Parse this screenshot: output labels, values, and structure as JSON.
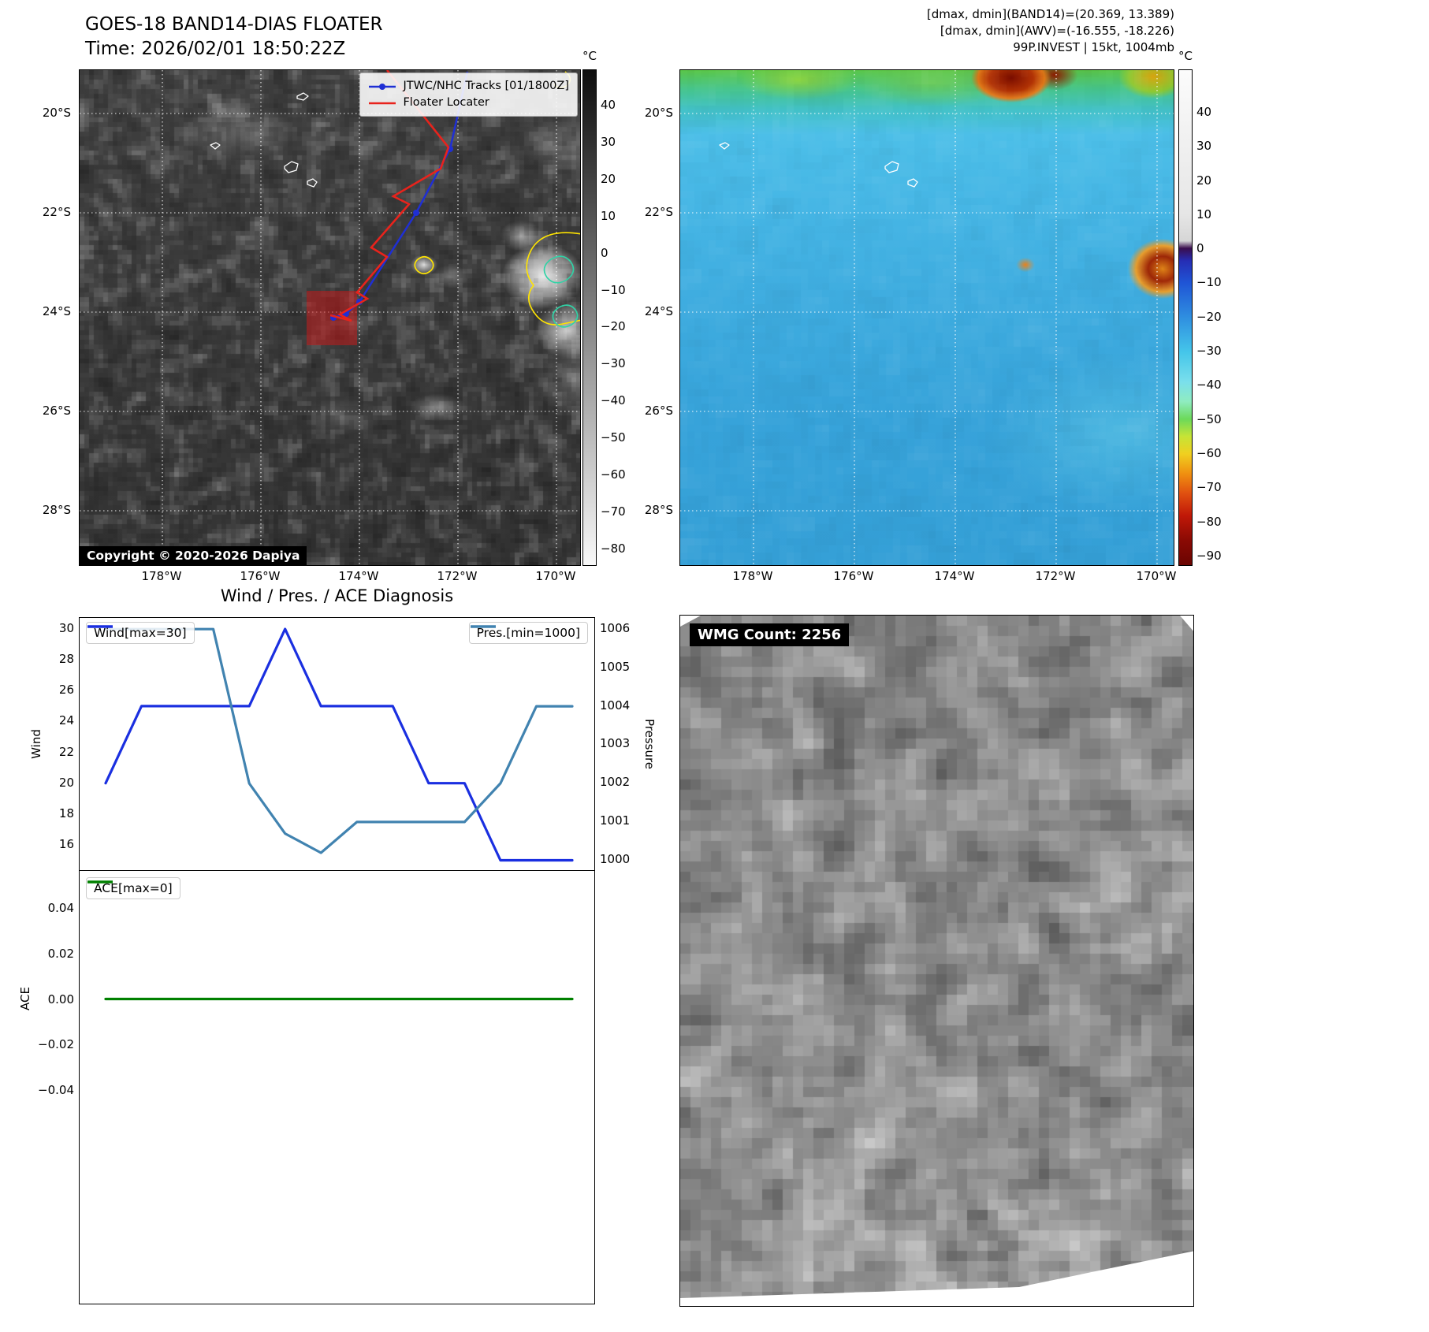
{
  "top_left_map": {
    "title": "GOES-18 BAND14-DIAS FLOATER",
    "time": "Time: 2026/02/01 18:50:22Z",
    "copyright": "Copyright © 2020-2026 Dapiya",
    "legend": [
      {
        "label": "JTWC/NHC Tracks [01/1800Z]",
        "color": "#1f2fd4"
      },
      {
        "label": "Floater Locater",
        "color": "#e8231c"
      }
    ],
    "floater_box_color": "#c41a1a",
    "colorbar": {
      "unit": "°C",
      "ticks": [
        "40",
        "30",
        "20",
        "10",
        "0",
        "−10",
        "−20",
        "−30",
        "−40",
        "−50",
        "−60",
        "−70",
        "−80"
      ]
    }
  },
  "top_right_map": {
    "info_lines": [
      "[dmax, dmin](BAND14)=(20.369, 13.389)",
      "[dmax, dmin](AWV)=(-16.555, -18.226)",
      "99P.INVEST | 15kt, 1004mb"
    ],
    "colorbar": {
      "unit": "°C",
      "ticks": [
        "40",
        "30",
        "20",
        "10",
        "0",
        "−10",
        "−20",
        "−30",
        "−40",
        "−50",
        "−60",
        "−70",
        "−80",
        "−90"
      ]
    }
  },
  "geo": {
    "lat_labels": [
      "20°S",
      "22°S",
      "24°S",
      "26°S",
      "28°S"
    ],
    "lon_labels": [
      "178°W",
      "176°W",
      "174°W",
      "172°W",
      "170°W"
    ]
  },
  "wmg": {
    "label": "WMG Count: 2256"
  },
  "chart_data": {
    "type": "line",
    "title": "Wind / Pres. / ACE Diagnosis",
    "x": [
      0,
      1,
      2,
      3,
      4,
      5,
      6,
      7,
      8,
      9,
      10,
      11,
      12,
      13
    ],
    "series": [
      {
        "name": "Wind[max=30]",
        "axis": "wind",
        "color": "#1a2fe0",
        "values": [
          20,
          25,
          25,
          25,
          25,
          30,
          25,
          25,
          25,
          20,
          20,
          15,
          15,
          15
        ]
      },
      {
        "name": "Pres.[min=1000]",
        "axis": "pressure",
        "color": "#4183b0",
        "values": [
          1006,
          1006,
          1006,
          1006,
          1002,
          1000.7,
          1000.2,
          1001,
          1001,
          1001,
          1001,
          1002,
          1004,
          1004
        ]
      },
      {
        "name": "ACE[max=0]",
        "axis": "ace",
        "color": "#008000",
        "values": [
          0,
          0,
          0,
          0,
          0,
          0,
          0,
          0,
          0,
          0,
          0,
          0,
          0,
          0
        ]
      }
    ],
    "axes": {
      "wind": {
        "label": "Wind",
        "ticks": [
          "30",
          "28",
          "26",
          "24",
          "22",
          "20",
          "18",
          "16"
        ],
        "ylim": [
          14.26,
          30.72
        ]
      },
      "pressure": {
        "label": "Pressure",
        "ticks": [
          "1006",
          "1005",
          "1004",
          "1003",
          "1002",
          "1001",
          "1000"
        ],
        "ylim": [
          999.71,
          1006.29
        ]
      },
      "ace": {
        "label": "ACE",
        "ticks": [
          "0.04",
          "0.02",
          "0.00",
          "−0.02",
          "−0.04"
        ],
        "ylim": [
          -0.1345,
          0.0564
        ]
      }
    },
    "grid": false,
    "legend_position": "inside-top"
  }
}
